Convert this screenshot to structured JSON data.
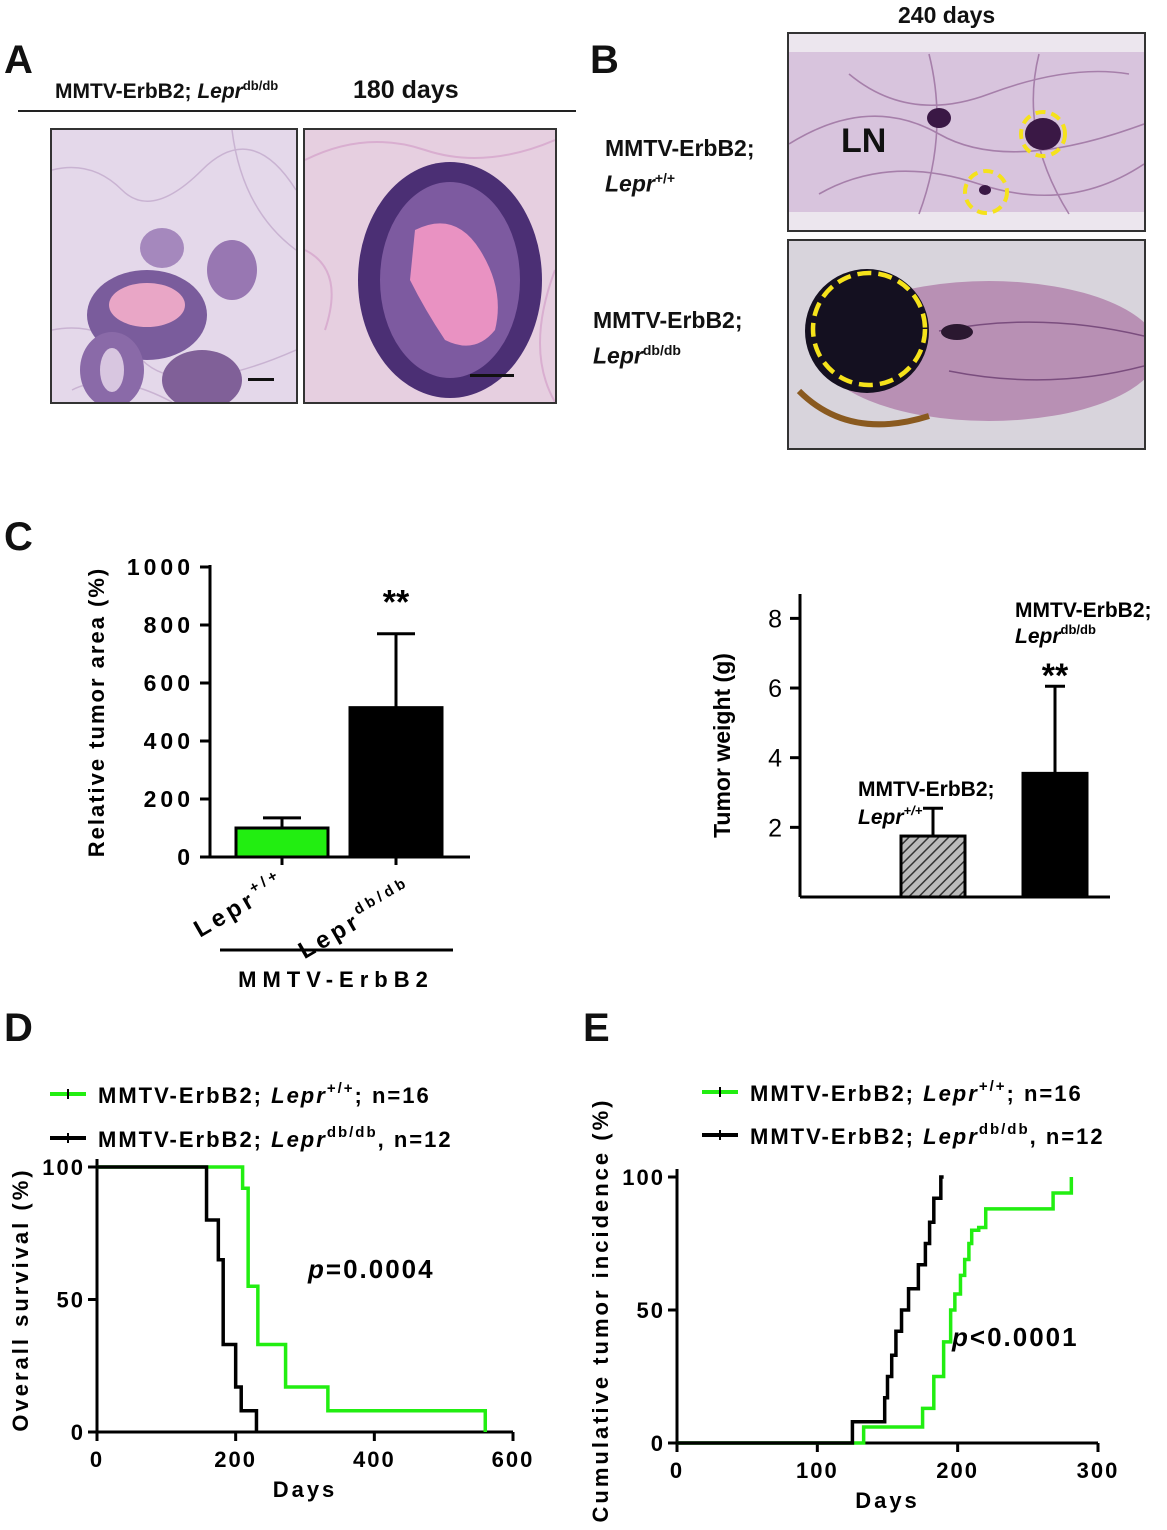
{
  "panels": {
    "a": {
      "letter": "A",
      "label_prefix": "MMTV-ErbB2; ",
      "label_gene": "Lepr",
      "label_sup": "db/db",
      "days": "180 days"
    },
    "b": {
      "letter": "B",
      "days": "240 days",
      "row1": {
        "line1": "MMTV-ErbB2;",
        "gene": "Lepr",
        "sup": "+/+"
      },
      "row2": {
        "line1": "MMTV-ErbB2;",
        "gene": "Lepr",
        "sup": "db/db"
      },
      "ln_label": "LN"
    },
    "c": {
      "letter": "C"
    },
    "d": {
      "letter": "D"
    },
    "e": {
      "letter": "E"
    }
  },
  "colors": {
    "green": "#22ee11",
    "black": "#000000",
    "yellow": "#f5e21b",
    "stain_bg": "#d9c5dc",
    "stain_dark": "#4b2f74",
    "stain_pink": "#e59ac2",
    "wholemount": "#b48bb0"
  },
  "chart_data": [
    {
      "id": "c-left",
      "type": "bar",
      "categories": [
        "Lepr+/+",
        "Leprdb/db"
      ],
      "category_labels": [
        {
          "gene": "Lepr",
          "sup": "+/+"
        },
        {
          "gene": "Lepr",
          "sup": "db/db"
        }
      ],
      "values": [
        100,
        515
      ],
      "errors": [
        35,
        255
      ],
      "colors": [
        "#22ee11",
        "#000000"
      ],
      "ylabel": "Relative tumor area (%)",
      "ylim": [
        0,
        1000
      ],
      "yticks": [
        0,
        200,
        400,
        600,
        800,
        1000
      ],
      "group_label": "MMTV-ErbB2",
      "annotation": "**"
    },
    {
      "id": "c-right",
      "type": "bar",
      "categories": [
        "MMTV-ErbB2; Lepr+/+",
        "MMTV-ErbB2; Leprdb/db"
      ],
      "category_labels": [
        {
          "line1": "MMTV-ErbB2;",
          "gene": "Lepr",
          "sup": "+/+"
        },
        {
          "line1": "MMTV-ErbB2;",
          "gene": "Lepr",
          "sup": "db/db"
        }
      ],
      "values": [
        1.75,
        3.55
      ],
      "errors": [
        0.8,
        2.5
      ],
      "fills": [
        "hatched-gray",
        "black"
      ],
      "ylabel": "Tumor weight (g)",
      "ylim": [
        0,
        8.7
      ],
      "yticks": [
        2,
        4,
        6,
        8
      ],
      "annotation": "**"
    },
    {
      "id": "d",
      "type": "line",
      "step": true,
      "xlabel": "Days",
      "ylabel": "Overall survival (%)",
      "xlim": [
        0,
        600
      ],
      "ylim": [
        0,
        100
      ],
      "xticks": [
        0,
        200,
        400,
        600
      ],
      "yticks": [
        0,
        50,
        100
      ],
      "pvalue": {
        "p": "p",
        "rest": "=0.0004"
      },
      "series": [
        {
          "legend": {
            "prefix": "MMTV-ErbB2; ",
            "gene": "Lepr",
            "sup": "+/+",
            "suffix": "; n=16"
          },
          "color": "#22ee11",
          "x": [
            0,
            203,
            210,
            218,
            232,
            272,
            333,
            560
          ],
          "y": [
            100,
            100,
            92,
            55,
            33,
            17,
            8,
            0
          ]
        },
        {
          "legend": {
            "prefix": "MMTV-ErbB2; ",
            "gene": "Lepr",
            "sup": "db/db",
            "suffix": ", n=12"
          },
          "color": "#000000",
          "x": [
            0,
            150,
            158,
            175,
            182,
            200,
            208,
            230
          ],
          "y": [
            100,
            100,
            80,
            65,
            33,
            17,
            8,
            0
          ]
        }
      ]
    },
    {
      "id": "e",
      "type": "line",
      "step": true,
      "xlabel": "Days",
      "ylabel": "Cumulative tumor incidence (%)",
      "xlim": [
        0,
        300
      ],
      "ylim": [
        0,
        100
      ],
      "xticks": [
        0,
        100,
        200,
        300
      ],
      "yticks": [
        0,
        50,
        100
      ],
      "pvalue": {
        "p": "p",
        "rest": "<0.0001"
      },
      "series": [
        {
          "legend": {
            "prefix": "MMTV-ErbB2; ",
            "gene": "Lepr",
            "sup": "+/+",
            "suffix": "; n=16"
          },
          "color": "#22ee11",
          "x": [
            0,
            133,
            175,
            183,
            190,
            195,
            198,
            202,
            205,
            208,
            210,
            215,
            220,
            228,
            268,
            275,
            281
          ],
          "y": [
            0,
            6,
            13,
            25,
            38,
            50,
            56,
            63,
            69,
            75,
            80,
            81,
            88,
            88,
            94,
            94,
            100
          ]
        },
        {
          "legend": {
            "prefix": "MMTV-ErbB2; ",
            "gene": "Lepr",
            "sup": "db/db",
            "suffix": ", n=12"
          },
          "color": "#000000",
          "x": [
            0,
            125,
            148,
            150,
            153,
            156,
            160,
            165,
            172,
            177,
            180,
            183,
            188,
            190
          ],
          "y": [
            0,
            8,
            17,
            25,
            33,
            42,
            50,
            58,
            67,
            75,
            83,
            92,
            100,
            100
          ]
        }
      ]
    }
  ]
}
